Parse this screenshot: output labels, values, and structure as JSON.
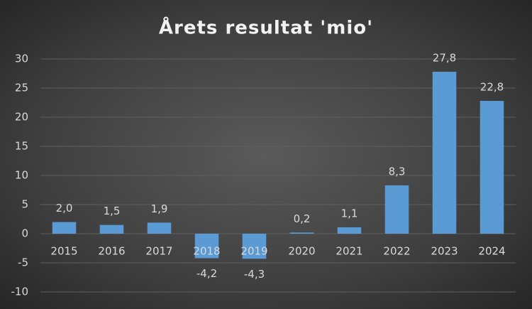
{
  "chart_data": {
    "type": "bar",
    "title": "Årets resultat 'mio'",
    "categories": [
      "2015",
      "2016",
      "2017",
      "2018",
      "2019",
      "2020",
      "2021",
      "2022",
      "2023",
      "2024"
    ],
    "values": [
      2.0,
      1.5,
      1.9,
      -4.2,
      -4.3,
      0.2,
      1.1,
      8.3,
      27.8,
      22.8
    ],
    "value_labels": [
      "2,0",
      "1,5",
      "1,9",
      "-4,2",
      "-4,3",
      "0,2",
      "1,1",
      "8,3",
      "27,8",
      "22,8"
    ],
    "color": "#5b9bd5",
    "ylim": [
      -10,
      30
    ],
    "yticks": [
      -10,
      -5,
      0,
      5,
      10,
      15,
      20,
      25,
      30
    ],
    "grid": true
  }
}
